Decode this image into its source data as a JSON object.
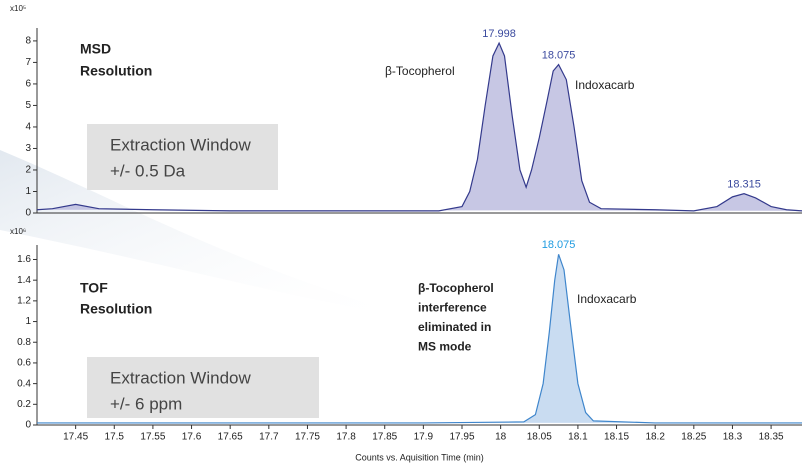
{
  "chart_data": [
    {
      "type": "area",
      "multiplier": "x10⁵",
      "title_lines": [
        "MSD",
        "Resolution"
      ],
      "box_lines": [
        "Extraction Window",
        "+/- 0.5 Da"
      ],
      "annotations": [
        {
          "lines": [
            "β-Tocopherol"
          ]
        },
        {
          "lines": [
            "Indoxacarb"
          ]
        }
      ],
      "x": [
        17.4,
        17.42,
        17.45,
        17.48,
        17.55,
        17.65,
        17.75,
        17.85,
        17.92,
        17.95,
        17.96,
        17.97,
        17.98,
        17.99,
        17.998,
        18.005,
        18.015,
        18.025,
        18.033,
        18.04,
        18.05,
        18.06,
        18.068,
        18.075,
        18.085,
        18.095,
        18.105,
        18.115,
        18.13,
        18.2,
        18.25,
        18.28,
        18.3,
        18.315,
        18.33,
        18.35,
        18.37,
        18.39
      ],
      "series": [
        {
          "color": "#343a8c",
          "values": [
            0.15,
            0.2,
            0.4,
            0.2,
            0.15,
            0.1,
            0.1,
            0.1,
            0.1,
            0.3,
            1.0,
            2.5,
            5.0,
            7.3,
            7.9,
            7.3,
            4.5,
            2.0,
            1.2,
            2.0,
            3.5,
            5.2,
            6.6,
            6.9,
            6.2,
            4.0,
            1.5,
            0.5,
            0.2,
            0.15,
            0.1,
            0.3,
            0.75,
            0.9,
            0.7,
            0.3,
            0.15,
            0.1
          ]
        }
      ],
      "fill_color": "#b9b9dd",
      "label_color": "#3b4a9e",
      "peak_labels": [
        17.998,
        18.075,
        18.315
      ],
      "xlim": [
        17.4,
        18.39
      ],
      "ylim": [
        0,
        8.6
      ],
      "yticks": [
        0,
        1,
        2,
        3,
        4,
        5,
        6,
        7,
        8
      ]
    },
    {
      "type": "area",
      "multiplier": "x10⁶",
      "title_lines": [
        "TOF",
        "Resolution"
      ],
      "box_lines": [
        "Extraction Window",
        "+/- 6 ppm"
      ],
      "annotations": [
        {
          "lines": [
            "β-Tocopherol",
            "interference",
            "eliminated in",
            "MS mode"
          ]
        },
        {
          "lines": [
            "Indoxacarb"
          ]
        }
      ],
      "x": [
        17.4,
        17.9,
        18.03,
        18.045,
        18.055,
        18.063,
        18.07,
        18.075,
        18.082,
        18.09,
        18.1,
        18.11,
        18.12,
        18.2,
        18.39
      ],
      "series": [
        {
          "color": "#3f86cc",
          "values": [
            0.02,
            0.02,
            0.03,
            0.1,
            0.4,
            0.9,
            1.4,
            1.65,
            1.5,
            1.0,
            0.4,
            0.12,
            0.04,
            0.02,
            0.02
          ]
        }
      ],
      "fill_color": "#bcd3ee",
      "label_color": "#1f9be0",
      "peak_labels": [
        18.075
      ],
      "xlim": [
        17.4,
        18.39
      ],
      "ylim": [
        0,
        1.74
      ],
      "yticks": [
        0,
        0.2,
        0.4,
        0.6,
        0.8,
        1,
        1.2,
        1.4,
        1.6
      ],
      "xticks": [
        17.45,
        17.5,
        17.55,
        17.6,
        17.65,
        17.7,
        17.75,
        17.8,
        17.85,
        17.9,
        17.95,
        18,
        18.05,
        18.1,
        18.15,
        18.2,
        18.25,
        18.3,
        18.35
      ],
      "xlabel": "Counts vs. Aquisition Time (min)"
    }
  ]
}
